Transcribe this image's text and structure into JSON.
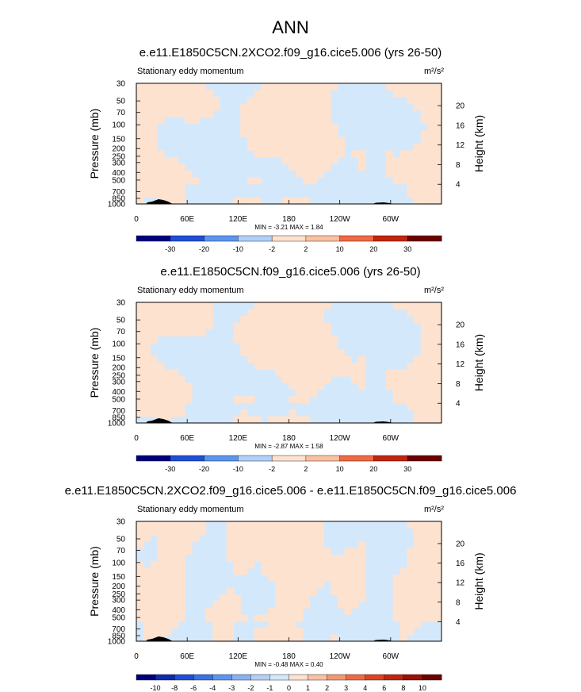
{
  "page": {
    "title": "ANN"
  },
  "shared": {
    "subtitle": "Stationary eddy momentum",
    "units": "m²/s²",
    "left_axis_label": "Pressure (mb)",
    "right_axis_label": "Height (km)",
    "pressure_ticks": [
      "30",
      "50",
      "70",
      "100",
      "150",
      "200",
      "250",
      "300",
      "400",
      "500",
      "700",
      "850",
      "1000"
    ],
    "height_ticks": [
      "20",
      "16",
      "12",
      "8",
      "4"
    ],
    "lon_ticks": [
      "0",
      "60E",
      "120E",
      "180",
      "120W",
      "60W"
    ]
  },
  "colors": {
    "positive_fill": "#fde2cf",
    "negative_fill": "#d4e8fb",
    "topography": "#000000",
    "colorbar": [
      "#00007f",
      "#0d2bb0",
      "#1f4fd6",
      "#3674e6",
      "#5c95ef",
      "#86b3f3",
      "#b2d0f7",
      "#d4e8fb",
      "#fde2cf",
      "#f9c0a1",
      "#f59772",
      "#ef6a44",
      "#e0421f",
      "#c2250d",
      "#9c1006",
      "#6e0000"
    ]
  },
  "chart_data": [
    {
      "type": "heatmap",
      "title": "e.e11.E1850C5CN.2XCO2.f09_g16.cice5.006 (yrs 26-50)",
      "subtitle": "Stationary eddy momentum",
      "units": "m²/s²",
      "xlabel": "",
      "ylabel": "Pressure (mb)",
      "ylabel_right": "Height (km)",
      "stats_text": "MIN = -3.21  MAX =  1.84",
      "stats": {
        "min": -3.21,
        "max": 1.84
      },
      "contour_levels": [
        "-30",
        "-20",
        "-10",
        "-2",
        "2",
        "10",
        "20",
        "30"
      ]
    },
    {
      "type": "heatmap",
      "title": "e.e11.E1850C5CN.f09_g16.cice5.006 (yrs 26-50)",
      "subtitle": "Stationary eddy momentum",
      "units": "m²/s²",
      "xlabel": "",
      "ylabel": "Pressure (mb)",
      "ylabel_right": "Height (km)",
      "stats_text": "MIN = -2.87  MAX =  1.58",
      "stats": {
        "min": -2.87,
        "max": 1.58
      },
      "contour_levels": [
        "-30",
        "-20",
        "-10",
        "-2",
        "2",
        "10",
        "20",
        "30"
      ]
    },
    {
      "type": "heatmap",
      "title": "e.e11.E1850C5CN.2XCO2.f09_g16.cice5.006 - e.e11.E1850C5CN.f09_g16.cice5.006",
      "subtitle": "Stationary eddy momentum",
      "units": "m²/s²",
      "xlabel": "",
      "ylabel": "Pressure (mb)",
      "ylabel_right": "Height (km)",
      "stats_text": "MIN = -0.48  MAX =  0.40",
      "stats": {
        "min": -0.48,
        "max": 0.4
      },
      "contour_levels": [
        "-10",
        "-8",
        "-6",
        "-4",
        "-3",
        "-2",
        "-1",
        "0",
        "1",
        "2",
        "3",
        "4",
        "6",
        "8",
        "10"
      ]
    }
  ]
}
